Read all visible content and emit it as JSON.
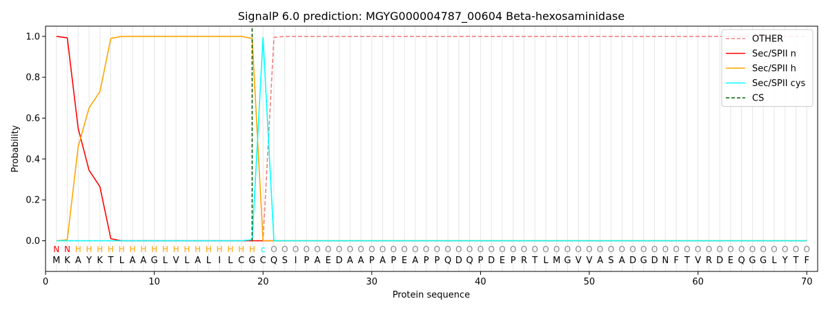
{
  "chart_data": {
    "type": "line",
    "title": "SignalP 6.0 prediction: MGYG000004787_00604 Beta-hexosaminidase",
    "xlabel": "Protein sequence",
    "ylabel": "Probability",
    "xlim": [
      0,
      71
    ],
    "ylim": [
      -0.15,
      1.05
    ],
    "xticks": [
      0,
      10,
      20,
      30,
      40,
      50,
      60,
      70
    ],
    "yticks": [
      0.0,
      0.2,
      0.4,
      0.6,
      0.8,
      1.0
    ],
    "ytick_labels": [
      "0.0",
      "0.2",
      "0.4",
      "0.6",
      "0.8",
      "1.0"
    ],
    "grid": "vertical lines at each residue",
    "legend_position": "top-right",
    "sequence": [
      "M",
      "K",
      "A",
      "Y",
      "K",
      "T",
      "L",
      "A",
      "A",
      "G",
      "L",
      "V",
      "L",
      "A",
      "L",
      "I",
      "L",
      "C",
      "G",
      "C",
      "Q",
      "S",
      "I",
      "P",
      "A",
      "E",
      "D",
      "A",
      "A",
      "P",
      "A",
      "P",
      "E",
      "A",
      "P",
      "P",
      "Q",
      "D",
      "Q",
      "P",
      "D",
      "E",
      "P",
      "R",
      "T",
      "L",
      "M",
      "G",
      "V",
      "V",
      "A",
      "S",
      "A",
      "D",
      "G",
      "D",
      "N",
      "F",
      "T",
      "V",
      "R",
      "D",
      "E",
      "Q",
      "G",
      "G",
      "L",
      "Y",
      "T",
      "F"
    ],
    "annotations": [
      "N",
      "N",
      "H",
      "H",
      "H",
      "H",
      "H",
      "H",
      "H",
      "H",
      "H",
      "H",
      "H",
      "H",
      "H",
      "H",
      "H",
      "H",
      "H",
      "c",
      "O",
      "O",
      "O",
      "O",
      "O",
      "O",
      "O",
      "O",
      "O",
      "O",
      "O",
      "O",
      "O",
      "O",
      "O",
      "O",
      "O",
      "O",
      "O",
      "O",
      "O",
      "O",
      "O",
      "O",
      "O",
      "O",
      "O",
      "O",
      "O",
      "O",
      "O",
      "O",
      "O",
      "O",
      "O",
      "O",
      "O",
      "O",
      "O",
      "O",
      "O",
      "O",
      "O",
      "O",
      "O",
      "O",
      "O",
      "O",
      "O",
      "O"
    ],
    "annotation_colors": {
      "N": "#ff0000",
      "H": "#ffa500",
      "c": "#00ffff",
      "O": "#808080"
    },
    "cleavage_site": 19,
    "series": [
      {
        "name": "OTHER",
        "color": "#f08080",
        "dash": true,
        "x": [
          1,
          2,
          3,
          4,
          5,
          6,
          7,
          8,
          9,
          10,
          11,
          12,
          13,
          14,
          15,
          16,
          17,
          18,
          19,
          20,
          21,
          22,
          70
        ],
        "values": [
          0,
          0,
          0,
          0,
          0,
          0,
          0,
          0,
          0,
          0,
          0,
          0,
          0,
          0,
          0,
          0,
          0,
          0,
          0,
          0,
          0.995,
          1.0,
          1.0
        ]
      },
      {
        "name": "Sec/SPII n",
        "color": "#ff0000",
        "dash": false,
        "x": [
          1,
          2,
          3,
          4,
          5,
          6,
          7,
          8,
          70
        ],
        "values": [
          1.0,
          0.993,
          0.55,
          0.345,
          0.265,
          0.01,
          0.0,
          0.0,
          0.0
        ]
      },
      {
        "name": "Sec/SPII h",
        "color": "#ffa500",
        "dash": false,
        "x": [
          1,
          2,
          3,
          4,
          5,
          6,
          7,
          8,
          9,
          10,
          11,
          12,
          13,
          14,
          15,
          16,
          17,
          18,
          19,
          20,
          21,
          70
        ],
        "values": [
          0.0,
          0.005,
          0.46,
          0.65,
          0.73,
          0.99,
          1.0,
          1.0,
          1.0,
          1.0,
          1.0,
          1.0,
          1.0,
          1.0,
          1.0,
          1.0,
          1.0,
          1.0,
          0.99,
          0.0,
          0.0,
          0.0
        ]
      },
      {
        "name": "Sec/SPII cys",
        "color": "#00ffff",
        "dash": false,
        "x": [
          1,
          18,
          19,
          20,
          21,
          70
        ],
        "values": [
          0.0,
          0.0,
          0.005,
          0.995,
          0.0,
          0.0
        ]
      },
      {
        "name": "CS",
        "color": "#006400",
        "dash": true,
        "legend_only": true
      }
    ]
  }
}
